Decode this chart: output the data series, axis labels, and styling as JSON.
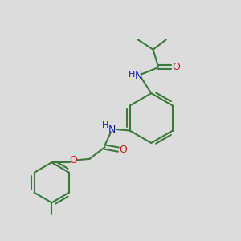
{
  "background_color": "#dcdcdc",
  "bond_color": "#3a7a3a",
  "N_color": "#1818bb",
  "O_color": "#cc1818",
  "line_width": 1.5,
  "figsize": [
    3.0,
    3.0
  ],
  "dpi": 100,
  "xlim": [
    0,
    10
  ],
  "ylim": [
    0,
    10
  ]
}
